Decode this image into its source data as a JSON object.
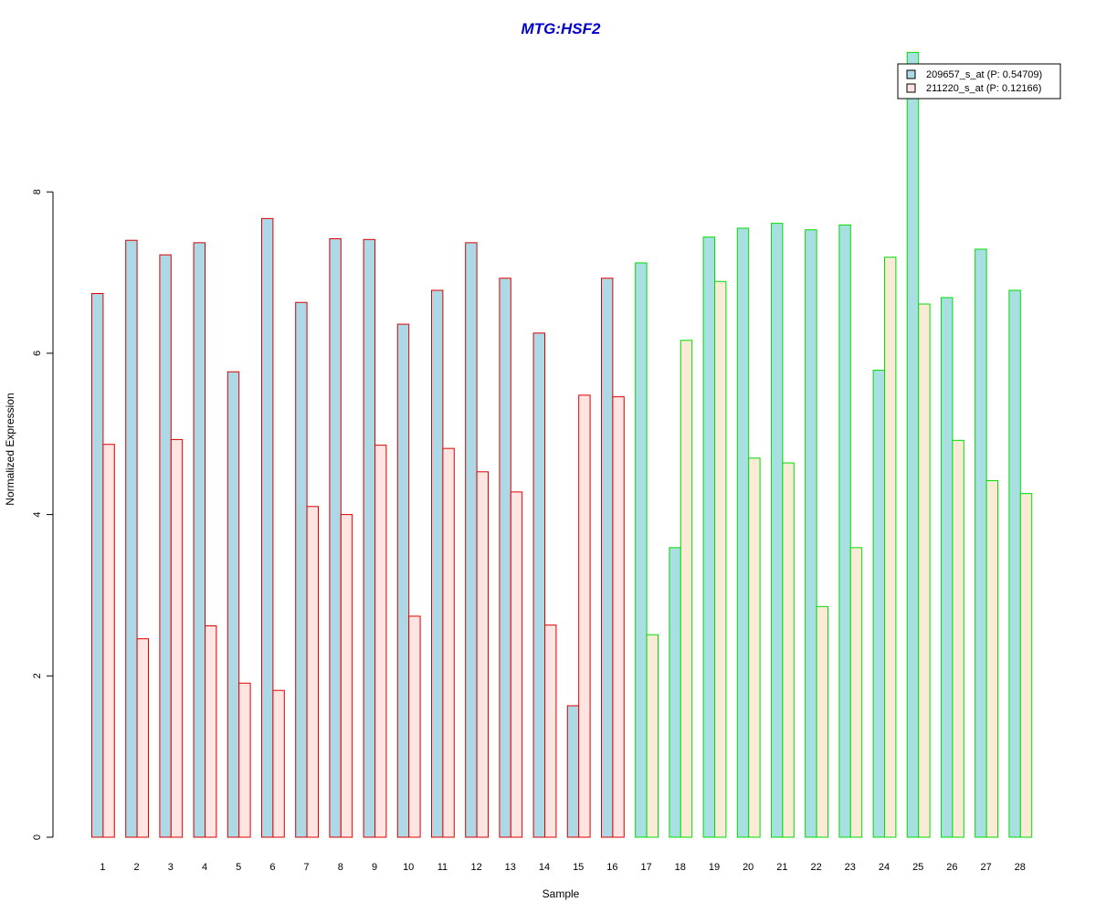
{
  "chart_data": {
    "type": "bar",
    "title": "MTG:HSF2",
    "xlabel": "Sample",
    "ylabel": "Normalized Expression",
    "ylim": [
      0,
      10
    ],
    "yticks": [
      0,
      2,
      4,
      6,
      8
    ],
    "grid": false,
    "legend_position": "top-right",
    "categories": [
      "1",
      "2",
      "3",
      "4",
      "5",
      "6",
      "7",
      "8",
      "9",
      "10",
      "11",
      "12",
      "13",
      "14",
      "15",
      "16",
      "17",
      "18",
      "19",
      "20",
      "21",
      "22",
      "23",
      "24",
      "25",
      "26",
      "27",
      "28"
    ],
    "groups": [
      {
        "samples": [
          "1",
          "2",
          "3",
          "4",
          "5",
          "6",
          "7",
          "8",
          "9",
          "10",
          "11",
          "12",
          "13",
          "14",
          "15",
          "16"
        ],
        "border_color": "#dd0000",
        "fills": [
          "#add8e6",
          "#ffe4e1"
        ]
      },
      {
        "samples": [
          "17",
          "18",
          "19",
          "20",
          "21",
          "22",
          "23",
          "24",
          "25",
          "26",
          "27",
          "28"
        ],
        "border_color": "#00dd00",
        "fills": [
          "#a8dfe3",
          "#faebd7"
        ]
      }
    ],
    "series": [
      {
        "name": "209657_s_at (P: 0.54709)",
        "legend_color": "#add8e6",
        "values": [
          6.74,
          7.4,
          7.22,
          7.37,
          5.77,
          7.67,
          6.63,
          7.42,
          7.41,
          6.36,
          6.78,
          7.37,
          6.93,
          6.25,
          1.63,
          6.93,
          7.12,
          3.59,
          7.44,
          7.55,
          7.61,
          7.53,
          7.59,
          5.79,
          9.73,
          6.69,
          7.29,
          6.78
        ]
      },
      {
        "name": "211220_s_at (P: 0.12166)",
        "legend_color": "#ffe4e1",
        "values": [
          4.87,
          2.46,
          4.93,
          2.62,
          1.91,
          1.82,
          4.1,
          4.0,
          4.86,
          2.74,
          4.82,
          4.53,
          4.28,
          2.63,
          5.48,
          5.46,
          2.51,
          6.16,
          6.89,
          4.7,
          4.64,
          2.86,
          3.59,
          7.19,
          6.61,
          4.92,
          4.42,
          4.26
        ]
      }
    ]
  }
}
